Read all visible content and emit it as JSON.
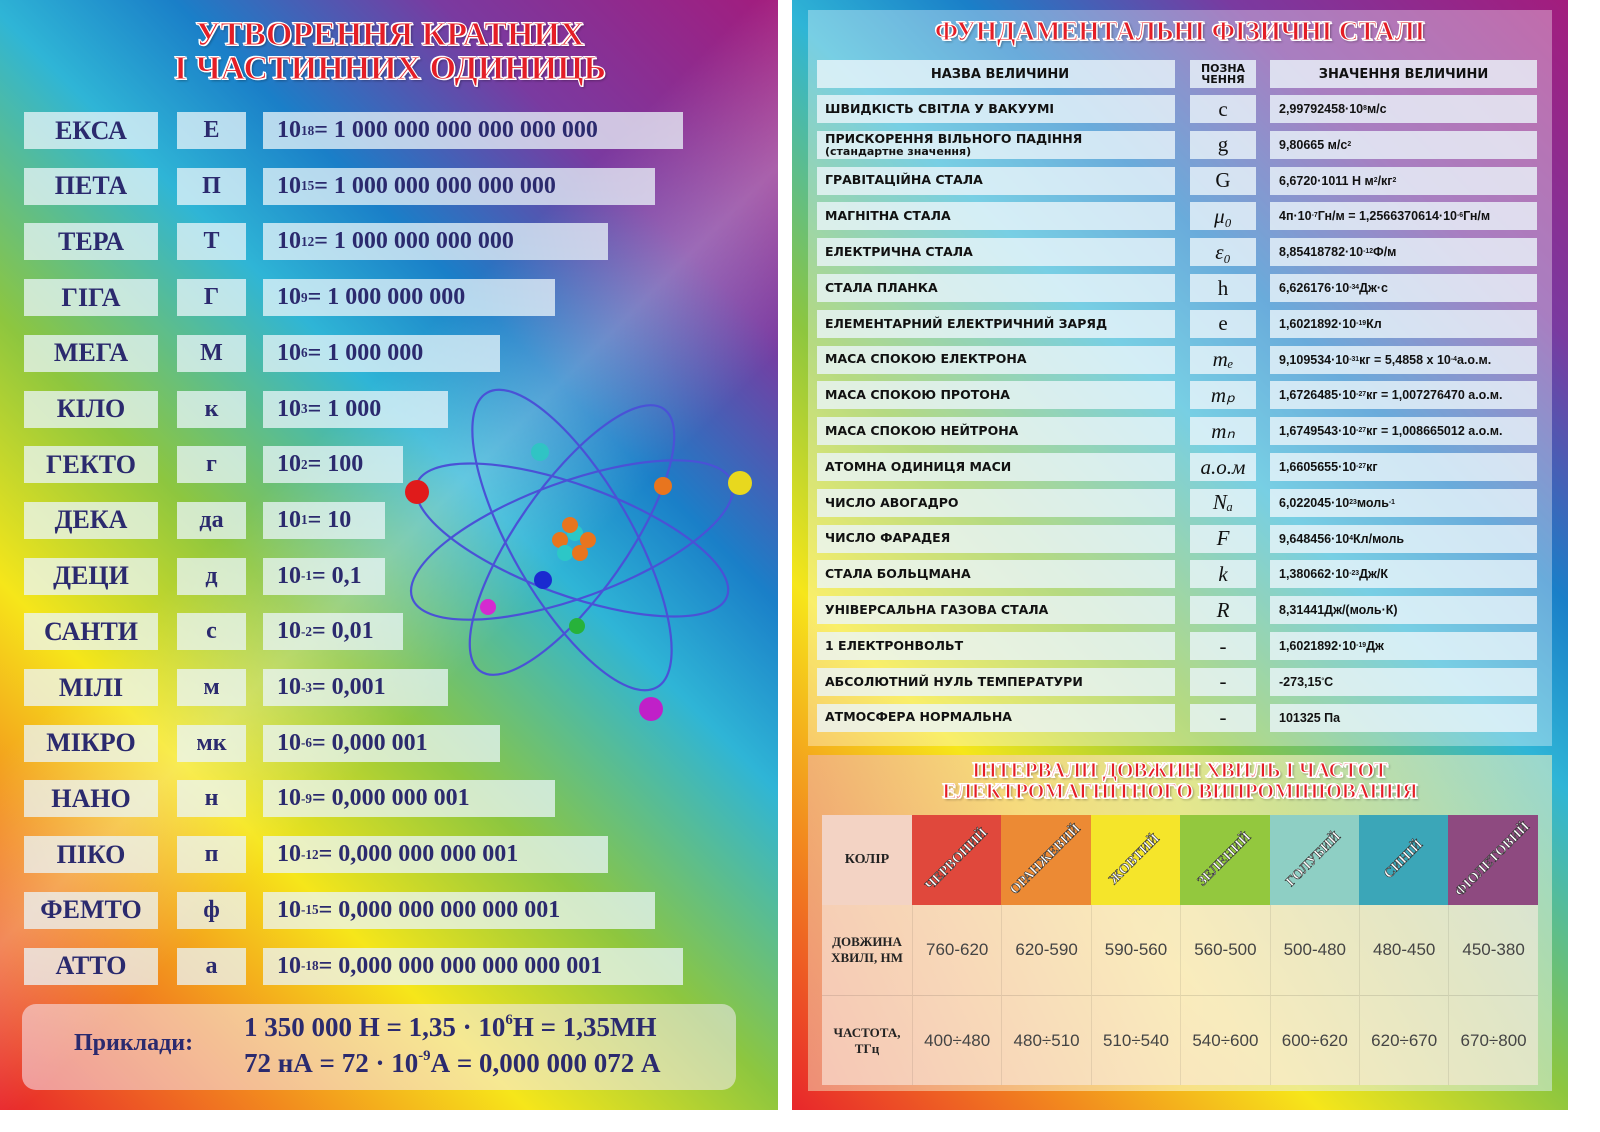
{
  "left": {
    "title": [
      "УТВОРЕННЯ КРАТНИХ",
      "І ЧАСТИННИХ ОДИНИЦЬ"
    ],
    "prefixes": [
      {
        "name": "ЕКСА",
        "symbol": "Е",
        "exp": "18",
        "value": "= 1 000 000 000 000 000 000"
      },
      {
        "name": "ПЕТА",
        "symbol": "П",
        "exp": "15",
        "value": "= 1 000 000 000 000 000"
      },
      {
        "name": "ТЕРА",
        "symbol": "Т",
        "exp": "12",
        "value": "= 1 000 000 000 000"
      },
      {
        "name": "ГІГА",
        "symbol": "Г",
        "exp": "9",
        "value": "= 1 000 000 000"
      },
      {
        "name": "МЕГА",
        "symbol": "М",
        "exp": "6",
        "value": "= 1 000 000"
      },
      {
        "name": "КІЛО",
        "symbol": "к",
        "exp": "3",
        "value": "= 1 000"
      },
      {
        "name": "ГЕКТО",
        "symbol": "г",
        "exp": "2",
        "value": "= 100"
      },
      {
        "name": "ДЕКА",
        "symbol": "да",
        "exp": "1",
        "value": "= 10"
      },
      {
        "name": "ДЕЦИ",
        "symbol": "д",
        "exp": "-1",
        "value": "= 0,1"
      },
      {
        "name": "САНТИ",
        "symbol": "с",
        "exp": "-2",
        "value": "= 0,01"
      },
      {
        "name": "МІЛІ",
        "symbol": "м",
        "exp": "-3",
        "value": "= 0,001"
      },
      {
        "name": "МІКРО",
        "symbol": "мк",
        "exp": "-6",
        "value": "= 0,000 001"
      },
      {
        "name": "НАНО",
        "symbol": "н",
        "exp": "-9",
        "value": "= 0,000 000 001"
      },
      {
        "name": "ПІКО",
        "symbol": "п",
        "exp": "-12",
        "value": "= 0,000 000 000 001"
      },
      {
        "name": "ФЕМТО",
        "symbol": "ф",
        "exp": "-15",
        "value": "= 0,000 000 000 000 001"
      },
      {
        "name": "АТТО",
        "symbol": "а",
        "exp": "-18",
        "value": "= 0,000 000 000 000 000 001"
      }
    ],
    "base": "10",
    "examples": {
      "label": "Приклади:",
      "line1": {
        "a": "1 350 000 Н = 1,35 · 10",
        "exp": "6",
        "b": "Н = 1,35МН"
      },
      "line2": {
        "a": "72 нА = 72 · 10",
        "exp": "-9",
        "b": "А = 0,000 000 072 А"
      }
    }
  },
  "right": {
    "title": "ФУНДАМЕНТАЛЬНІ ФІЗИЧНІ СТАЛІ",
    "headers": {
      "name": "НАЗВА ВЕЛИЧИНИ",
      "symbol": [
        "ПОЗНА",
        "ЧЕННЯ"
      ],
      "value": "ЗНАЧЕННЯ ВЕЛИЧИНИ"
    },
    "constants": [
      {
        "name": "ШВИДКІСТЬ СВІТЛА У ВАКУУМІ",
        "symbol": "c",
        "value": [
          [
            "2,99792458·10"
          ],
          [
            "8",
            "sup"
          ],
          [
            "м/с"
          ]
        ]
      },
      {
        "name": "ПРИСКОРЕННЯ ВІЛЬНОГО ПАДІННЯ",
        "note": "(стандартне значення)",
        "symbol": "g",
        "value": [
          [
            "9,80665 м/с "
          ],
          [
            "2",
            "sup"
          ]
        ]
      },
      {
        "name": "ГРАВІТАЦІЙНА СТАЛА",
        "symbol": "G",
        "value": [
          [
            "6,6720·1011 Н м"
          ],
          [
            "2",
            "sup"
          ],
          [
            "/кг"
          ],
          [
            "2",
            "sup"
          ]
        ]
      },
      {
        "name": "МАГНІТНА СТАЛА",
        "symbol": "μ₀",
        "value": [
          [
            "4п·10"
          ],
          [
            "-7",
            "sup"
          ],
          [
            " Гн/м = 1,2566370614·10"
          ],
          [
            "-6",
            "sup"
          ],
          [
            " Гн/м"
          ]
        ]
      },
      {
        "name": "ЕЛЕКТРИЧНА СТАЛА",
        "symbol": "ε₀",
        "value": [
          [
            "8,85418782·10"
          ],
          [
            "-12",
            "sup"
          ],
          [
            " Ф/м"
          ]
        ]
      },
      {
        "name": "СТАЛА ПЛАНКА",
        "symbol": "h",
        "value": [
          [
            "6,626176·10"
          ],
          [
            "-34",
            "sup"
          ],
          [
            " Дж·с"
          ]
        ]
      },
      {
        "name": "ЕЛЕМЕНТАРНИЙ ЕЛЕКТРИЧНИЙ ЗАРЯД",
        "symbol": "e",
        "value": [
          [
            "1,6021892·10"
          ],
          [
            "-19",
            "sup"
          ],
          [
            " Кл"
          ]
        ]
      },
      {
        "name": "МАСА СПОКОЮ ЕЛЕКТРОНА",
        "symbol": "mₑ",
        "value": [
          [
            "9,109534·10"
          ],
          [
            "-31",
            "sup"
          ],
          [
            " кг = 5,4858 x 10"
          ],
          [
            "-4",
            "sup"
          ],
          [
            " а.о.м."
          ]
        ]
      },
      {
        "name": "МАСА СПОКОЮ ПРОТОНА",
        "symbol": "mₚ",
        "value": [
          [
            "1,6726485·10"
          ],
          [
            "-27",
            "sup"
          ],
          [
            "кг = 1,007276470 а.о.м."
          ]
        ]
      },
      {
        "name": "МАСА СПОКОЮ НЕЙТРОНА",
        "symbol": "mₙ",
        "value": [
          [
            "1,6749543·10"
          ],
          [
            "-27",
            "sup"
          ],
          [
            "кг = 1,008665012 а.о.м."
          ]
        ]
      },
      {
        "name": "АТОМНА ОДИНИЦЯ МАСИ",
        "symbol": "а.о.м",
        "value": [
          [
            "1,6605655·10"
          ],
          [
            "-27",
            "sup"
          ],
          [
            "кг"
          ]
        ]
      },
      {
        "name": "ЧИСЛО АВОГАДРО",
        "symbol": "Nₐ",
        "value": [
          [
            "6,022045·10"
          ],
          [
            "23",
            "sup"
          ],
          [
            "моль"
          ],
          [
            "-1",
            "sup"
          ]
        ]
      },
      {
        "name": "ЧИСЛО ФАРАДЕЯ",
        "symbol": "F",
        "value": [
          [
            "9,648456·10"
          ],
          [
            "4",
            "sup"
          ],
          [
            "Кл/моль"
          ]
        ]
      },
      {
        "name": "СТАЛА БОЛЬЦМАНА",
        "symbol": "k",
        "value": [
          [
            "1,380662·10"
          ],
          [
            "-23",
            "sup"
          ],
          [
            "Дж/К"
          ]
        ]
      },
      {
        "name": "УНІВЕРСАЛЬНА ГАЗОВА СТАЛА",
        "symbol": "R",
        "value": [
          [
            "8,31441Дж/(моль·К)"
          ]
        ]
      },
      {
        "name": "1 ЕЛЕКТРОНВОЛЬТ",
        "symbol": "-",
        "value": [
          [
            "1,6021892·10"
          ],
          [
            "-19",
            "sup"
          ],
          [
            "Дж"
          ]
        ]
      },
      {
        "name": "АБСОЛЮТНИЙ НУЛЬ ТЕМПЕРАТУРИ",
        "symbol": "-",
        "value": [
          [
            "-273,15"
          ],
          [
            "°",
            "sup"
          ],
          [
            "С"
          ]
        ]
      },
      {
        "name": "АТМОСФЕРА НОРМАЛЬНА",
        "symbol": "-",
        "value": [
          [
            "101325 Па"
          ]
        ]
      }
    ],
    "waves": {
      "title": [
        "ІНТЕРВАЛИ ДОВЖИН ХВИЛЬ І ЧАСТОТ",
        "ЕЛЕКТРОМАГНІТНОГО ВИПРОМІНЮВАННЯ"
      ],
      "row_labels": {
        "color": "КОЛІР",
        "wavelength": [
          "ДОВЖИНА",
          "ХВИЛІ, НМ"
        ],
        "frequency": [
          "ЧАСТОТА,",
          "ТГц"
        ]
      },
      "colors": [
        {
          "name": "ЧЕРВОНИЙ",
          "hex": "#e0483c",
          "wavelength": "760-620",
          "frequency": "400÷480"
        },
        {
          "name": "ОРАНЖЕВИЙ",
          "hex": "#ec8a34",
          "wavelength": "620-590",
          "frequency": "480÷510"
        },
        {
          "name": "ЖОВТИЙ",
          "hex": "#f5e52a",
          "wavelength": "590-560",
          "frequency": "510÷540"
        },
        {
          "name": "ЗЕЛЕНИЙ",
          "hex": "#93c83e",
          "wavelength": "560-500",
          "frequency": "540÷600"
        },
        {
          "name": "ГОЛУБИЙ",
          "hex": "#8ecfc4",
          "wavelength": "500-480",
          "frequency": "600÷620"
        },
        {
          "name": "СИНІЙ",
          "hex": "#3ba6b8",
          "wavelength": "480-450",
          "frequency": "620÷670"
        },
        {
          "name": "ФІОЛЕТОВИЙ",
          "hex": "#8e4a80",
          "wavelength": "450-380",
          "frequency": "670÷800"
        }
      ]
    }
  }
}
